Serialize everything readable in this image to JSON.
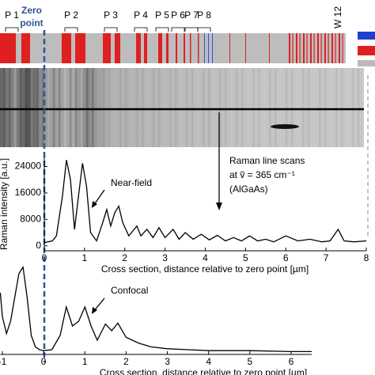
{
  "strip_labels": [
    "P 1",
    "P 2",
    "P 3",
    "P 4",
    "P 5",
    "P 6",
    "P 7",
    "P 8"
  ],
  "wafer_label": "W 12",
  "zero_point": [
    "Zero",
    "point"
  ],
  "scan_note": [
    "Raman line scans",
    "at ṽ = 365 cm⁻¹",
    "(AlGaAs)"
  ],
  "chart_data": [
    {
      "type": "line",
      "y_label": "Raman intensity [a.u.]",
      "x_label": "Cross section, distance relative to zero point [µm]",
      "annotation": "Near-field",
      "color": "#000000",
      "x": [
        0,
        0.2,
        0.3,
        0.45,
        0.55,
        0.65,
        0.75,
        0.85,
        0.95,
        1.05,
        1.15,
        1.3,
        1.45,
        1.55,
        1.65,
        1.75,
        1.85,
        1.95,
        2.1,
        2.3,
        2.4,
        2.55,
        2.7,
        2.85,
        3.0,
        3.2,
        3.35,
        3.5,
        3.7,
        3.9,
        4.1,
        4.3,
        4.5,
        4.7,
        4.9,
        5.1,
        5.3,
        5.5,
        5.7,
        6.0,
        6.3,
        6.6,
        6.9,
        7.1,
        7.3,
        7.45,
        7.7,
        8.0
      ],
      "values": [
        1000,
        1500,
        3000,
        15000,
        26000,
        20000,
        5000,
        15000,
        25000,
        18000,
        4000,
        1500,
        7000,
        11000,
        6000,
        10000,
        12000,
        7000,
        3000,
        6000,
        3000,
        5000,
        2500,
        5500,
        2500,
        5000,
        2000,
        4000,
        2000,
        3500,
        1800,
        3200,
        1500,
        2500,
        1500,
        3000,
        1500,
        2000,
        1200,
        3000,
        1500,
        2000,
        1200,
        1500,
        5000,
        1500,
        1200,
        1500
      ],
      "xlim": [
        0,
        8
      ],
      "xticks": [
        0,
        1,
        2,
        3,
        4,
        5,
        6,
        7,
        8
      ],
      "ylim": [
        -1500,
        27000
      ],
      "yticks": [
        0,
        8000,
        16000,
        24000
      ]
    },
    {
      "type": "line",
      "x_label": "Cross section, distance relative to zero point [µm]",
      "annotation": "Confocal",
      "color": "#000000",
      "x": [
        -1.05,
        -1.0,
        -0.9,
        -0.8,
        -0.7,
        -0.6,
        -0.5,
        -0.4,
        -0.3,
        -0.2,
        -0.1,
        0,
        0.2,
        0.4,
        0.55,
        0.7,
        0.85,
        1.0,
        1.15,
        1.3,
        1.5,
        1.65,
        1.8,
        2.0,
        2.3,
        2.6,
        3.0,
        3.5,
        4.0,
        5.0,
        6.0,
        6.5
      ],
      "values": [
        65,
        40,
        22,
        35,
        60,
        85,
        92,
        60,
        20,
        8,
        5,
        4,
        5,
        20,
        50,
        30,
        35,
        50,
        30,
        15,
        32,
        25,
        33,
        18,
        12,
        8,
        6,
        5,
        4,
        4,
        3,
        3
      ],
      "xlim": [
        -1.05,
        6.5
      ],
      "xticks": [
        -1,
        0,
        1,
        2,
        3,
        4,
        5,
        6
      ],
      "ylim": [
        0,
        100
      ]
    }
  ]
}
